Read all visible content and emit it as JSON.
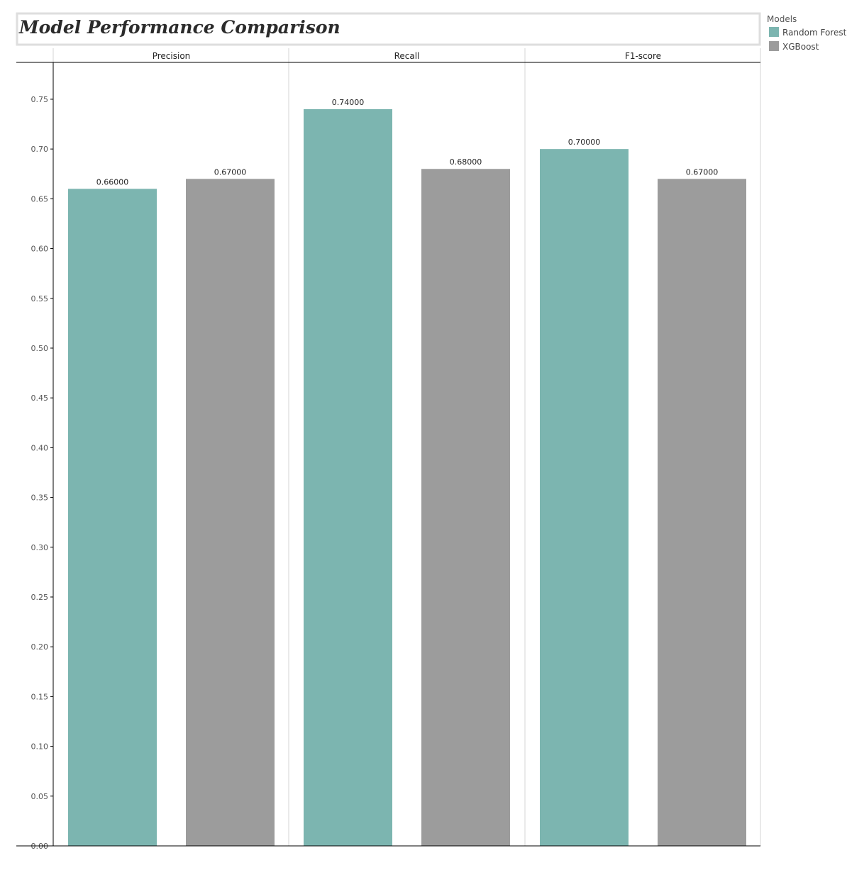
{
  "chart_data": {
    "type": "bar",
    "title": "Model Performance Comparison",
    "facets": [
      "Precision",
      "Recall",
      "F1-score"
    ],
    "series": [
      {
        "name": "Random Forest",
        "color": "#7cb5b0",
        "values": [
          0.66,
          0.74,
          0.7
        ]
      },
      {
        "name": "XGBoost",
        "color": "#9c9c9c",
        "values": [
          0.67,
          0.68,
          0.67
        ]
      }
    ],
    "data_labels": [
      [
        "0.66000",
        "0.74000",
        "0.70000"
      ],
      [
        "0.67000",
        "0.68000",
        "0.67000"
      ]
    ],
    "legend_title": "Models",
    "legend_position": "top-right",
    "ylim": [
      0,
      0.787
    ],
    "yticks": [
      0,
      0.05,
      0.1,
      0.15,
      0.2,
      0.25,
      0.3,
      0.35,
      0.4,
      0.45,
      0.5,
      0.55,
      0.6,
      0.65,
      0.7,
      0.75
    ],
    "ytick_labels": [
      "0.00",
      "0.05",
      "0.10",
      "0.15",
      "0.20",
      "0.25",
      "0.30",
      "0.35",
      "0.40",
      "0.45",
      "0.50",
      "0.55",
      "0.60",
      "0.65",
      "0.70",
      "0.75"
    ],
    "xlabel": "",
    "ylabel": "",
    "grid": false
  }
}
